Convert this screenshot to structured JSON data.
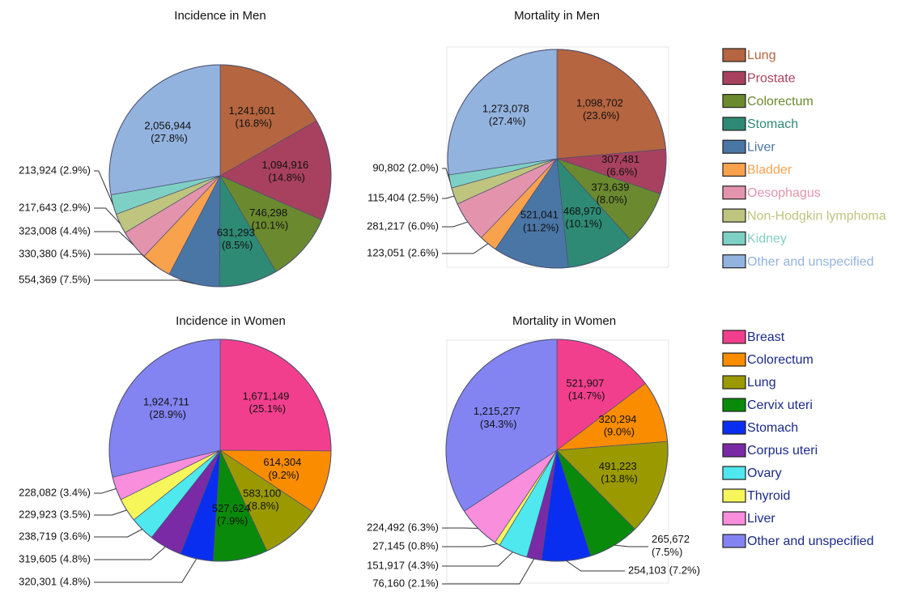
{
  "chart_data": [
    {
      "type": "pie",
      "title": "Incidence in Men",
      "categories": [
        "Lung",
        "Prostate",
        "Colorectum",
        "Stomach",
        "Liver",
        "Bladder",
        "Oesophagus",
        "Non-Hodgkin lymphoma",
        "Kidney",
        "Other and unspecified"
      ],
      "values": [
        1241601,
        1094916,
        746298,
        631293,
        554369,
        330380,
        323008,
        217643,
        213924,
        2056944
      ],
      "value_labels": [
        "1,241,601 (16.8%)",
        "1,094,916 (14.8%)",
        "746,298 (10.1%)",
        "631,293 (8.5%)",
        "554,369 (7.5%)",
        "330,380 (4.5%)",
        "323,008 (4.4%)",
        "217,643 (2.9%)",
        "213,924 (2.9%)",
        "2,056,944 (27.8%)"
      ],
      "colors": [
        "#b5653f",
        "#a8415f",
        "#6b8a2f",
        "#2e8a74",
        "#4a76a6",
        "#f8a24e",
        "#e394ac",
        "#bfc47f",
        "#7fd0c4",
        "#93b3df"
      ]
    },
    {
      "type": "pie",
      "title": "Mortality in Men",
      "categories": [
        "Lung",
        "Prostate",
        "Colorectum",
        "Stomach",
        "Liver",
        "Bladder",
        "Oesophagus",
        "Non-Hodgkin lymphoma",
        "Kidney",
        "Other and unspecified"
      ],
      "values": [
        1098702,
        307481,
        373639,
        468970,
        521041,
        123051,
        281217,
        115404,
        90802,
        1273078
      ],
      "value_labels": [
        "1,098,702 (23.6%)",
        "307,481 (6.6%)",
        "373,639 (8.0%)",
        "468,970 (10.1%)",
        "521,041 (11.2%)",
        "123,051 (2.6%)",
        "281,217 (6.0%)",
        "115,404 (2.5%)",
        "90,802 (2.0%)",
        "1,273,078 (27.4%)"
      ],
      "colors": [
        "#b5653f",
        "#a8415f",
        "#6b8a2f",
        "#2e8a74",
        "#4a76a6",
        "#f8a24e",
        "#e394ac",
        "#bfc47f",
        "#7fd0c4",
        "#93b3df"
      ],
      "legend_colored_text": true
    },
    {
      "type": "pie",
      "title": "Incidence in Women",
      "categories": [
        "Breast",
        "Colorectum",
        "Lung",
        "Cervix uteri",
        "Stomach",
        "Corpus uteri",
        "Ovary",
        "Thyroid",
        "Liver",
        "Other and unspecified"
      ],
      "values": [
        1671149,
        614304,
        583100,
        527624,
        320301,
        319605,
        238719,
        229923,
        228082,
        1924711
      ],
      "value_labels": [
        "1,671,149 (25.1%)",
        "614,304 (9.2%)",
        "583,100 (8.8%)",
        "527,624 (7.9%)",
        "320,301 (4.8%)",
        "319,605 (4.8%)",
        "238,719 (3.6%)",
        "229,923 (3.5%)",
        "228,082 (3.4%)",
        "1,924,711 (28.9%)"
      ],
      "colors": [
        "#f23f8d",
        "#fa8c00",
        "#9a9a00",
        "#0a8a0a",
        "#0a2ef0",
        "#7b2aa5",
        "#4ee8ee",
        "#f6f65a",
        "#f88edc",
        "#8384f2"
      ]
    },
    {
      "type": "pie",
      "title": "Mortality in Women",
      "categories": [
        "Breast",
        "Colorectum",
        "Lung",
        "Cervix uteri",
        "Stomach",
        "Corpus uteri",
        "Ovary",
        "Thyroid",
        "Liver",
        "Other and unspecified"
      ],
      "values": [
        521907,
        320294,
        491223,
        265672,
        254103,
        76160,
        151917,
        27145,
        224492,
        1215277
      ],
      "value_labels": [
        "521,907 (14.7%)",
        "320,294 (9.0%)",
        "491,223 (13.8%)",
        "265,672 (7.5%)",
        "254,103 (7.2%)",
        "76,160 (2.1%)",
        "151,917 (4.3%)",
        "27,145 (0.8%)",
        "224,492 (6.3%)",
        "1,215,277 (34.3%)"
      ],
      "colors": [
        "#f23f8d",
        "#fa8c00",
        "#9a9a00",
        "#0a8a0a",
        "#0a2ef0",
        "#7b2aa5",
        "#4ee8ee",
        "#f6f65a",
        "#f88edc",
        "#8384f2"
      ],
      "legend_colored_text": false
    }
  ]
}
